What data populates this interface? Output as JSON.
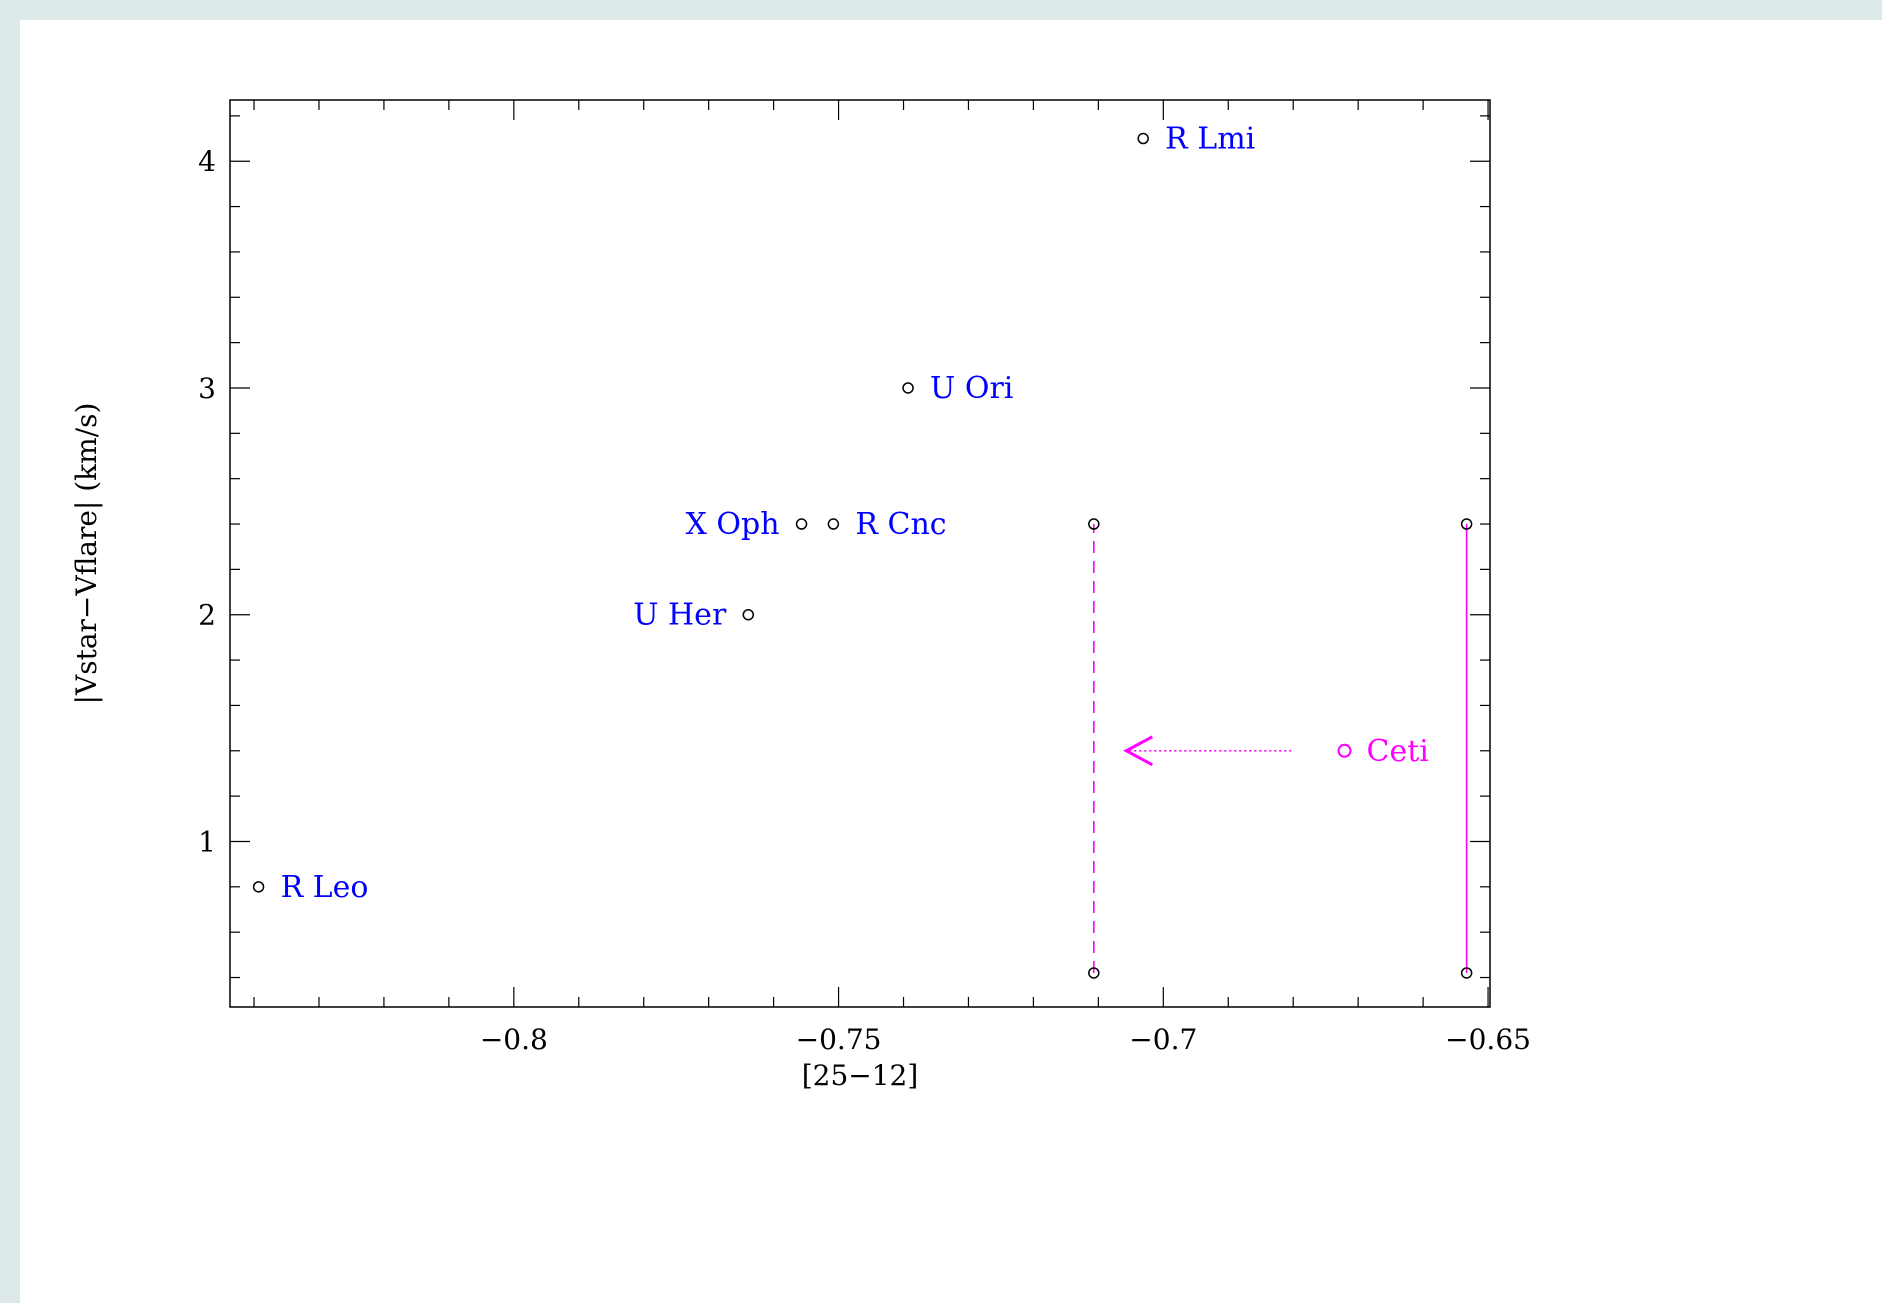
{
  "chart_data": {
    "type": "scatter",
    "xlabel": "[25−12]",
    "ylabel": "|Vstar−Vflare| (km/s)",
    "xlim": [
      -0.8437,
      -0.6497
    ],
    "ylim": [
      0.27,
      4.27
    ],
    "x_ticks": [
      {
        "value": -0.8,
        "label": "−0.8"
      },
      {
        "value": -0.75,
        "label": "−0.75"
      },
      {
        "value": -0.7,
        "label": "−0.7"
      },
      {
        "value": -0.65,
        "label": "−0.65"
      }
    ],
    "y_ticks": [
      {
        "value": 1,
        "label": "1"
      },
      {
        "value": 2,
        "label": "2"
      },
      {
        "value": 3,
        "label": "3"
      },
      {
        "value": 4,
        "label": "4"
      }
    ],
    "grid": false,
    "points": [
      {
        "label": "R Lmi",
        "x": -0.7031,
        "y": 4.1,
        "label_side": "right"
      },
      {
        "label": "U Ori",
        "x": -0.7393,
        "y": 3.0,
        "label_side": "right"
      },
      {
        "label": "X Oph",
        "x": -0.7557,
        "y": 2.4,
        "label_side": "left"
      },
      {
        "label": "R Cnc",
        "x": -0.7508,
        "y": 2.4,
        "label_side": "right"
      },
      {
        "label": "U Her",
        "x": -0.7639,
        "y": 2.0,
        "label_side": "left"
      },
      {
        "label": "R Leo",
        "x": -0.8393,
        "y": 0.8,
        "label_side": "right"
      }
    ],
    "ceti": {
      "label": "Ceti",
      "point": {
        "x": -0.6721,
        "y": 1.4
      },
      "solid_range": {
        "x": -0.6533,
        "y1": 0.42,
        "y2": 2.4
      },
      "dashed_range": {
        "x": -0.7107,
        "y1": 0.42,
        "y2": 2.4
      },
      "arrow": {
        "x_from": -0.6803,
        "x_to": -0.7057,
        "y": 1.4
      }
    },
    "colors": {
      "label": "#0000ff",
      "ceti": "#ff00ff",
      "axis": "#000000",
      "marker": "#000000"
    }
  }
}
